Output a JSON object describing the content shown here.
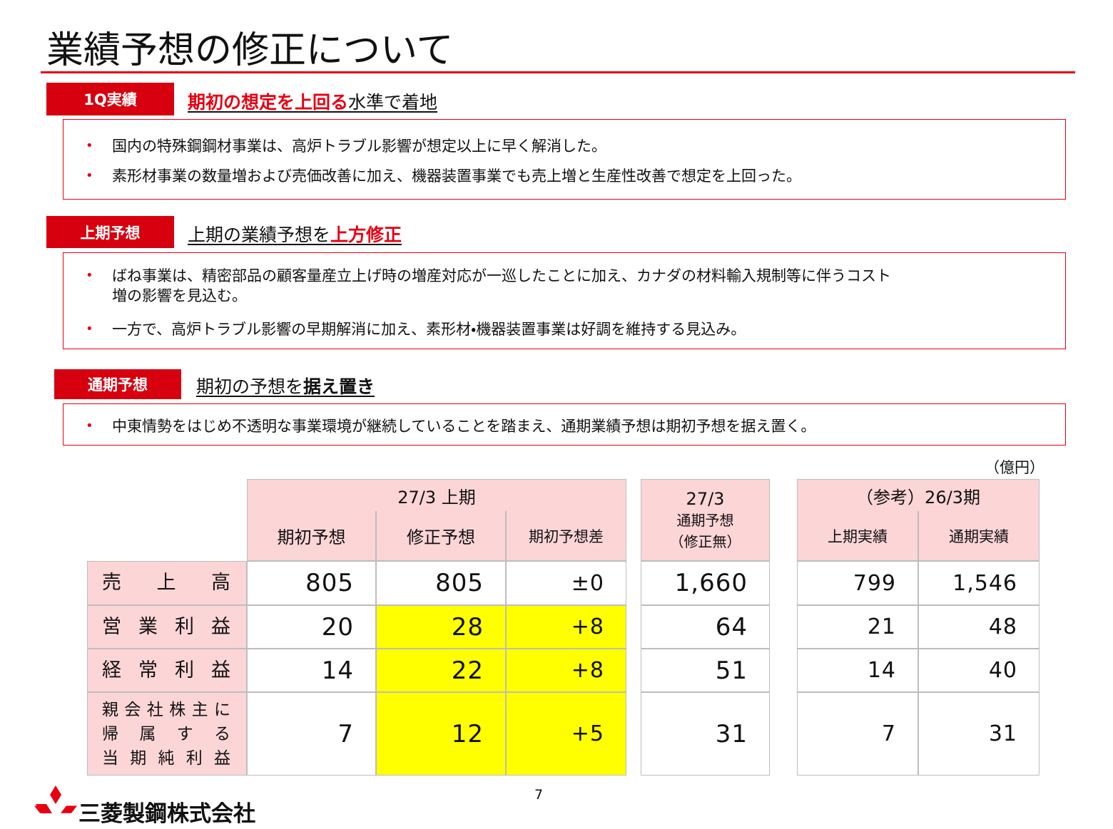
{
  "title": "業績予想の修正について",
  "sections": [
    {
      "tag": "1Q実績",
      "headline": [
        "期初の想定を上回る",
        "水準で着地"
      ],
      "bullets": [
        [
          "国内の特殊鋼鋼材事業は、高炉トラブル影響が想定以上に早く解消した。"
        ],
        [
          "素形材事業の数量増および売価改善に加え、機器装置事業でも売上増と生産性改善で想定を上回った。"
        ]
      ]
    },
    {
      "tag": "上期予想",
      "headline": [
        "上期の業績予想を",
        "上方修正"
      ],
      "bullets": [
        [
          "ばね事業は、精密部品の顧客量産立上げ時の増産対応が一巡したことに加え、カナダの材料輸入規制等に伴うコスト",
          "増の影響を見込む。"
        ],
        [
          "一方で、高炉トラブル影響の早期解消に加え、素形材・機器装置事業は好調を維持する見込み。"
        ]
      ]
    },
    {
      "tag": "通期予想",
      "headline": [
        "期初の予想を",
        "据え置き"
      ],
      "bullets": [
        [
          "中東情勢をはじめ不透明な事業環境が継続していることを踏まえ、通期業績予想は期初予想を据え置く。"
        ]
      ]
    }
  ],
  "unit": "（億円）",
  "table": {
    "groups": [
      {
        "label": [
          "27/3 上期"
        ],
        "columns": [
          "期初予想",
          "修正予想",
          "期初予想差"
        ]
      },
      {
        "label": [
          "27/3",
          "通期予想",
          "（修正無）"
        ],
        "columns": []
      },
      {
        "label": [
          "（参考）26/3期"
        ],
        "columns": [
          "上期実績",
          "通期実績"
        ]
      }
    ],
    "rows": [
      {
        "label": [
          "売上高"
        ],
        "cells": [
          "805",
          "805",
          "±0",
          "1,660",
          "799",
          "1,546"
        ]
      },
      {
        "label": [
          "営業利益"
        ],
        "cells": [
          "20",
          "28",
          "+8",
          "64",
          "21",
          "48"
        ]
      },
      {
        "label": [
          "経常利益"
        ],
        "cells": [
          "14",
          "22",
          "+8",
          "51",
          "14",
          "40"
        ]
      },
      {
        "label": [
          "親会社株主に",
          "帰属する",
          "当期純利益"
        ],
        "cells": [
          "7",
          "12",
          "+5",
          "31",
          "7",
          "31"
        ]
      }
    ]
  },
  "page_number": "7",
  "company": "三菱製鋼株式会社"
}
